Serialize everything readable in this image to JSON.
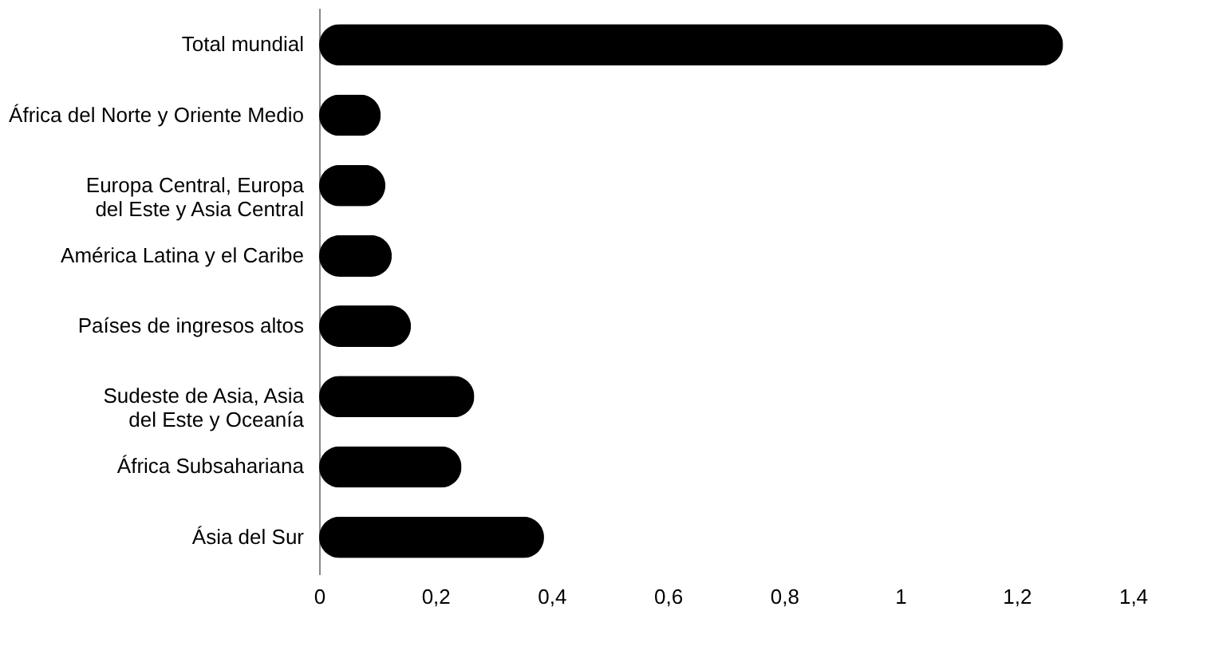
{
  "chart_data": {
    "type": "bar",
    "orientation": "horizontal",
    "categories": [
      "Total mundial",
      "África del Norte y Oriente Medio",
      "Europa Central, Europa\ndel Este y Asia Central",
      "América Latina y el Caribe",
      "Países de ingresos altos",
      "Sudeste de Asia, Asia\ndel Este y Oceanía",
      "África Subsahariana",
      "Ásia del Sur"
    ],
    "values": [
      1.28,
      0.106,
      0.114,
      0.125,
      0.158,
      0.267,
      0.245,
      0.387
    ],
    "color": "#000000",
    "xlim": [
      0,
      1.4
    ],
    "xticks": [
      0,
      {
        "value": 0.2,
        "label": "0,2"
      },
      {
        "value": 0.4,
        "label": "0,4"
      },
      {
        "value": 0.6,
        "label": "0,6"
      },
      {
        "value": 0.8,
        "label": "0,8"
      },
      1,
      {
        "value": 1.2,
        "label": "1,2"
      },
      {
        "value": 1.4,
        "label": "1,4"
      }
    ],
    "grid": false
  }
}
